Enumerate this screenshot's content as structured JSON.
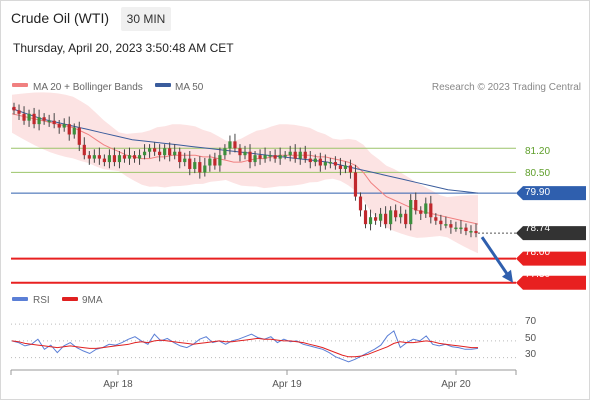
{
  "header": {
    "title": "Crude Oil (WTI)",
    "interval": "30 MIN",
    "datetime": "Thursday, April 20, 2023 3:50:48 AM CET"
  },
  "legend": {
    "ma20": "MA 20 + Bollinger Bands",
    "ma50": "MA 50",
    "research": "Research © 2023 Trading Central",
    "rsi": "RSI",
    "ma9": "9MA"
  },
  "colors": {
    "ma20": "#f08080",
    "ma50": "#3a5c9c",
    "band": "#fbd9d9",
    "candle_up": "#3c8f3c",
    "candle_down": "#c0282d",
    "support": "#e82020",
    "resistance": "#9cc46a",
    "pivot": "#2f5fae",
    "current": "#333333",
    "arrow": "#2f5fae",
    "rsi": "#5b7fd6",
    "rsi_ma": "#e02020"
  },
  "chart_data": {
    "type": "candlestick",
    "x_ticks": [
      "Apr 18",
      "Apr 19",
      "Apr 20"
    ],
    "y_range": [
      76.8,
      82.6
    ],
    "levels": [
      {
        "value": 81.2,
        "label": "81.20",
        "kind": "resistance"
      },
      {
        "value": 80.5,
        "label": "80.50",
        "kind": "resistance"
      },
      {
        "value": 79.9,
        "label": "79.90",
        "kind": "pivot"
      },
      {
        "value": 78.74,
        "label": "78.74",
        "kind": "current"
      },
      {
        "value": 78.0,
        "label": "78.00",
        "kind": "support"
      },
      {
        "value": 77.3,
        "label": "77.30",
        "kind": "support"
      }
    ],
    "close": [
      82.3,
      82.2,
      82.0,
      82.2,
      81.9,
      82.1,
      82.0,
      82.0,
      81.9,
      81.8,
      81.9,
      81.6,
      81.8,
      81.3,
      81.0,
      80.9,
      81.0,
      80.9,
      80.8,
      81.0,
      80.8,
      81.0,
      80.9,
      81.0,
      80.9,
      81.0,
      81.1,
      81.2,
      81.1,
      81.0,
      81.2,
      81.0,
      81.1,
      80.8,
      80.9,
      80.6,
      80.8,
      80.5,
      80.7,
      80.9,
      80.7,
      81.0,
      81.2,
      81.4,
      81.2,
      81.0,
      81.1,
      80.8,
      81.0,
      80.9,
      81.0,
      81.0,
      80.9,
      81.0,
      81.0,
      81.1,
      80.9,
      81.1,
      80.9,
      80.8,
      80.9,
      80.7,
      80.8,
      80.8,
      80.7,
      80.6,
      80.7,
      80.5,
      79.8,
      79.4,
      79.0,
      79.2,
      79.1,
      79.3,
      79.0,
      79.4,
      79.2,
      79.3,
      79.0,
      79.7,
      79.4,
      79.3,
      79.6,
      79.2,
      79.1,
      79.0,
      79.0,
      78.9,
      78.9,
      78.9,
      78.8,
      78.8,
      78.74
    ],
    "ma20": [
      82.2,
      82.15,
      82.1,
      82.05,
      82.0,
      81.95,
      81.9,
      81.85,
      81.8,
      81.7,
      81.6,
      81.45,
      81.3,
      81.2,
      81.1,
      81.0,
      80.95,
      80.9,
      80.9,
      80.95,
      80.95,
      81.0,
      81.0,
      81.0,
      81.0,
      80.95,
      80.95,
      80.9,
      80.85,
      80.8,
      80.8,
      80.85,
      80.9,
      80.9,
      80.95,
      81.0,
      81.0,
      81.0,
      81.0,
      81.0,
      80.95,
      80.95,
      80.9,
      80.85,
      80.8,
      80.7,
      80.5,
      80.2,
      80.0,
      79.8,
      79.7,
      79.6,
      79.5,
      79.4,
      79.35,
      79.3,
      79.25,
      79.2,
      79.15,
      79.1,
      79.05,
      79.0
    ],
    "ma50": [
      82.35,
      82.2,
      82.05,
      81.95,
      81.85,
      81.75,
      81.65,
      81.55,
      81.45,
      81.4,
      81.35,
      81.3,
      81.25,
      81.2,
      81.15,
      81.1,
      81.05,
      81.0,
      80.95,
      80.9,
      80.85,
      80.8,
      80.7,
      80.6,
      80.5,
      80.4,
      80.3,
      80.2,
      80.1,
      80.0,
      79.95,
      79.9
    ],
    "rsi_ticks": [
      70,
      50,
      30
    ],
    "rsi": [
      50,
      48,
      44,
      46,
      52,
      40,
      45,
      36,
      44,
      48,
      42,
      38,
      35,
      40,
      42,
      46,
      45,
      48,
      52,
      55,
      50,
      46,
      58,
      50,
      53,
      48,
      44,
      42,
      46,
      52,
      55,
      48,
      50,
      46,
      50,
      52,
      55,
      58,
      54,
      52,
      55,
      48,
      52,
      49,
      50,
      46,
      44,
      42,
      40,
      36,
      31,
      28,
      25,
      28,
      32,
      36,
      40,
      45,
      56,
      62,
      42,
      48,
      52,
      50,
      56,
      46,
      44,
      46,
      43,
      42,
      40,
      40,
      41
    ],
    "rsi_ma": [
      50,
      49,
      47,
      46,
      45,
      44,
      43,
      42,
      43,
      44,
      43,
      42,
      41,
      41,
      42,
      43,
      44,
      45,
      46,
      48,
      49,
      48,
      50,
      51,
      50,
      49,
      48,
      47,
      46,
      47,
      48,
      49,
      50,
      49,
      49,
      50,
      51,
      52,
      53,
      52,
      52,
      51,
      50,
      50,
      49,
      48,
      46,
      44,
      42,
      39,
      36,
      33,
      31,
      31,
      32,
      34,
      37,
      40,
      43,
      47,
      49,
      48,
      48,
      49,
      50,
      49,
      47,
      46,
      45,
      44,
      43,
      42,
      42
    ]
  }
}
